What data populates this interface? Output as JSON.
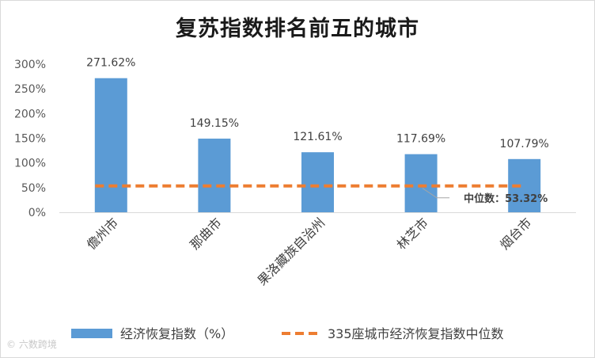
{
  "watermark": "© 六数跨境",
  "chart_data": {
    "type": "bar",
    "title": "复苏指数排名前五的城市",
    "categories": [
      "儋州市",
      "那曲市",
      "果洛藏族自治州",
      "林芝市",
      "烟台市"
    ],
    "series": [
      {
        "name": "经济恢复指数（%）",
        "type": "bar",
        "color": "#5b9bd5",
        "values": [
          271.62,
          149.15,
          121.61,
          117.69,
          107.79
        ],
        "labels": [
          "271.62%",
          "149.15%",
          "121.61%",
          "117.69%",
          "107.79%"
        ]
      },
      {
        "name": "335座城市经济恢复指数中位数",
        "type": "line",
        "style": "dashed",
        "color": "#ed7d31",
        "value": 53.32
      }
    ],
    "annotation": {
      "label": "中位数：",
      "value_text": "53.32%"
    },
    "yticks": [
      "0%",
      "50%",
      "100%",
      "150%",
      "200%",
      "250%",
      "300%"
    ],
    "ylim": [
      0,
      300
    ],
    "grid": false,
    "legend": "bottom"
  }
}
